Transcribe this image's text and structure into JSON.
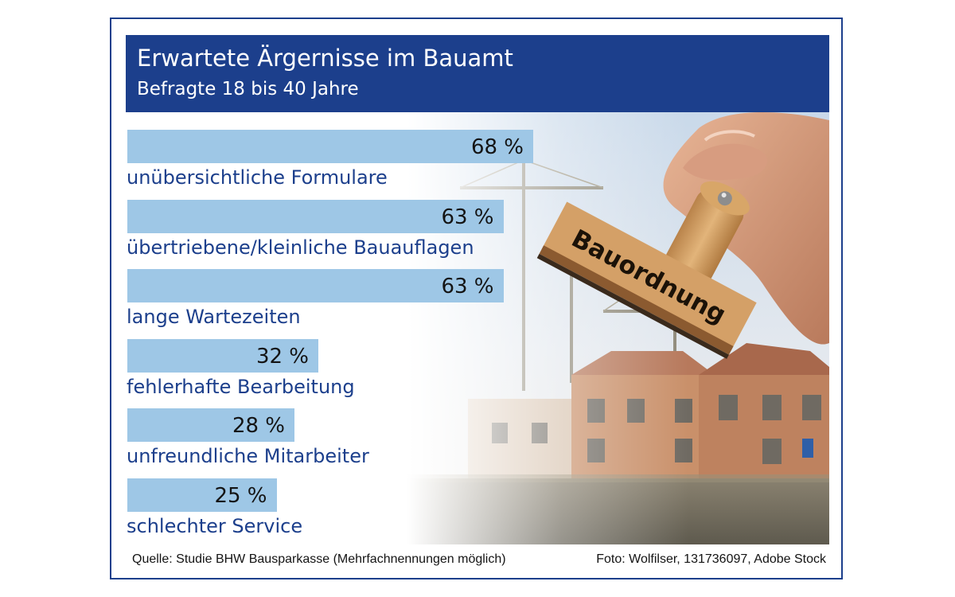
{
  "chart_data": {
    "type": "bar",
    "orientation": "horizontal",
    "title": "Erwartete Ärgernisse im Bauamt",
    "subtitle": "Befragte 18 bis 40 Jahre",
    "categories": [
      "unübersichtliche Formulare",
      "übertriebene/kleinliche Bauauflagen",
      "lange Wartezeiten",
      "fehlerhafte Bearbeitung",
      "unfreundliche Mitarbeiter",
      "schlechter Service"
    ],
    "values": [
      68,
      63,
      63,
      32,
      28,
      25
    ],
    "value_labels": [
      "68 %",
      "63 %",
      "63 %",
      "32 %",
      "28 %",
      "25 %"
    ],
    "unit": "%",
    "xlim": [
      0,
      100
    ],
    "grid": false,
    "legend": "none"
  },
  "photo": {
    "stamp_text": "Bauordnung"
  },
  "footer": {
    "source": "Quelle: Studie BHW Bausparkasse (Mehrfachnennungen möglich)",
    "photo_credit": "Foto: Wolfilser, 131736097, Adobe Stock"
  },
  "colors": {
    "header": "#1c3f8c",
    "bar": "#9ec7e6",
    "label": "#1c3f8c",
    "value": "#141414"
  }
}
